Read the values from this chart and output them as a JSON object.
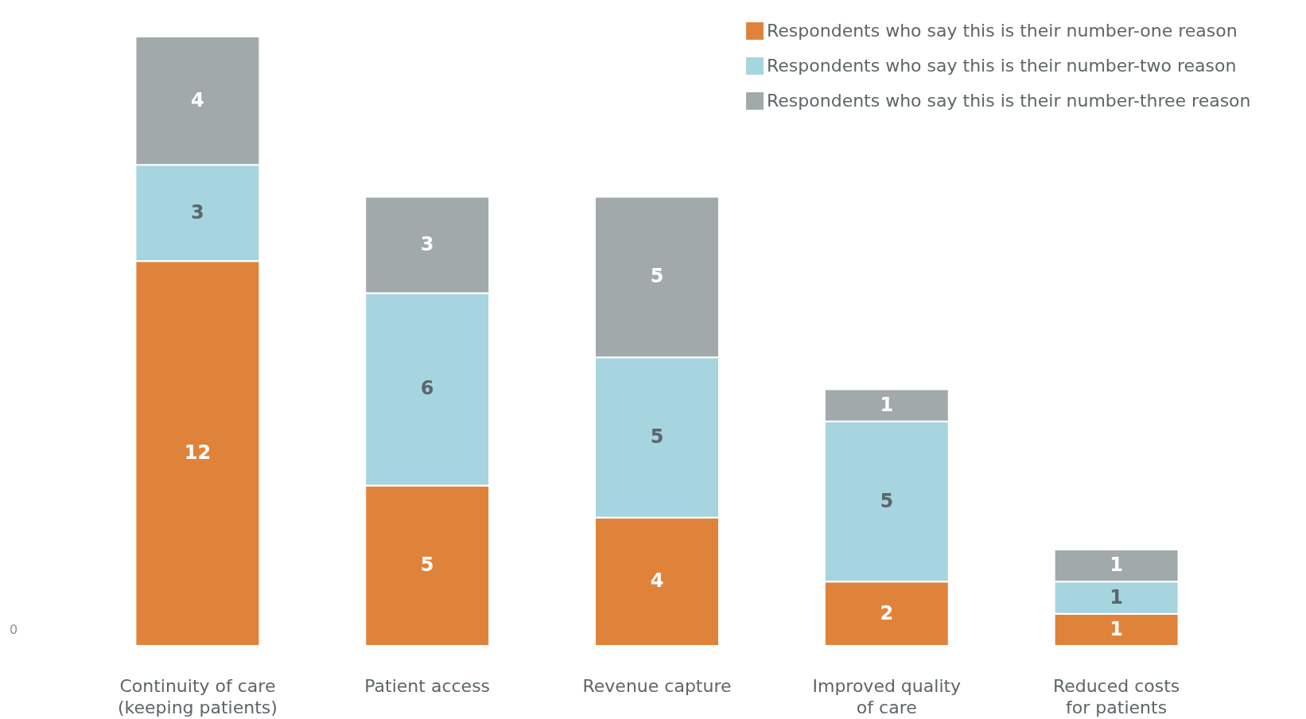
{
  "chart_data": {
    "type": "bar",
    "stacked": true,
    "data_labels": true,
    "legend": "top right",
    "grid": false,
    "categories": [
      "Continuity of care\n(keeping patients)",
      "Patient access",
      "Revenue capture",
      "Improved quality\nof care",
      "Reduced costs\nfor patients"
    ],
    "annotations": [
      "0"
    ],
    "series": [
      {
        "name": "Respondents who say this is their number-one reason",
        "color": "#e0833a",
        "values": [
          12,
          5,
          4,
          2,
          1
        ]
      },
      {
        "name": "Respondents who say this is their number-two reason",
        "color": "#a6d5df",
        "values": [
          3,
          6,
          5,
          5,
          1
        ]
      },
      {
        "name": "Respondents who say this is their number-three reason",
        "color": "#a2a9ab",
        "values": [
          4,
          3,
          5,
          1,
          1
        ]
      }
    ]
  }
}
